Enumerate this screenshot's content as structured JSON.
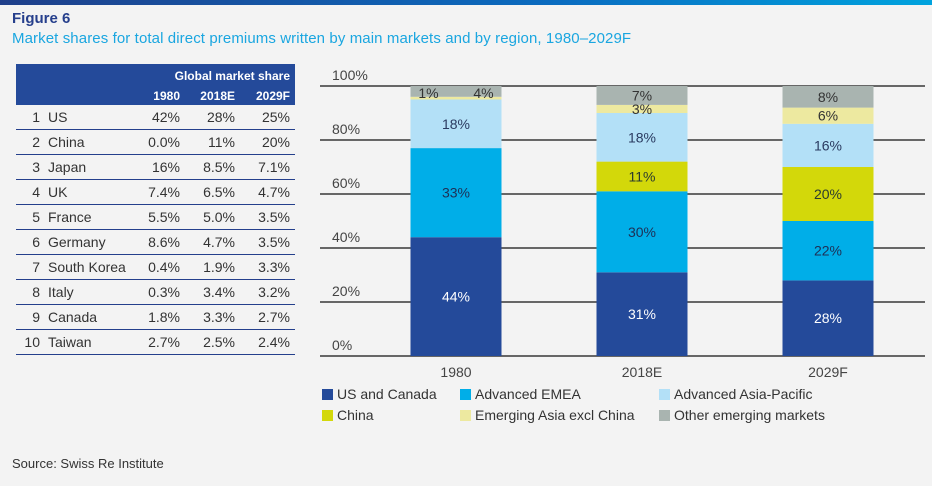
{
  "figure": {
    "label": "Figure 6",
    "title": "Market shares for total direct premiums written by main markets and by region, 1980–2029F",
    "source": "Source: Swiss Re Institute"
  },
  "table": {
    "group_header": "Global market share",
    "columns": [
      "1980",
      "2018E",
      "2029F"
    ],
    "rows": [
      {
        "rank": "1",
        "country": "US",
        "values": [
          "42%",
          "28%",
          "25%"
        ]
      },
      {
        "rank": "2",
        "country": "China",
        "values": [
          "0.0%",
          "11%",
          "20%"
        ]
      },
      {
        "rank": "3",
        "country": "Japan",
        "values": [
          "16%",
          "8.5%",
          "7.1%"
        ]
      },
      {
        "rank": "4",
        "country": "UK",
        "values": [
          "7.4%",
          "6.5%",
          "4.7%"
        ]
      },
      {
        "rank": "5",
        "country": "France",
        "values": [
          "5.5%",
          "5.0%",
          "3.5%"
        ]
      },
      {
        "rank": "6",
        "country": "Germany",
        "values": [
          "8.6%",
          "4.7%",
          "3.5%"
        ]
      },
      {
        "rank": "7",
        "country": "South Korea",
        "values": [
          "0.4%",
          "1.9%",
          "3.3%"
        ]
      },
      {
        "rank": "8",
        "country": "Italy",
        "values": [
          "0.3%",
          "3.4%",
          "3.2%"
        ]
      },
      {
        "rank": "9",
        "country": "Canada",
        "values": [
          "1.8%",
          "3.3%",
          "2.7%"
        ]
      },
      {
        "rank": "10",
        "country": "Taiwan",
        "values": [
          "2.7%",
          "2.5%",
          "2.4%"
        ]
      }
    ]
  },
  "chart_data": {
    "type": "bar",
    "stacked": true,
    "title": "Market shares for total direct premiums written by region",
    "xlabel": "",
    "ylabel": "",
    "ylim": [
      0,
      100
    ],
    "y_ticks": [
      "0%",
      "20%",
      "40%",
      "60%",
      "80%",
      "100%"
    ],
    "grid": true,
    "legend_position": "bottom",
    "categories": [
      "1980",
      "2018E",
      "2029F"
    ],
    "series": [
      {
        "name": "US and Canada",
        "color": "#244a9a",
        "label_color": "#ffffff",
        "values": [
          44,
          31,
          28
        ],
        "labels": [
          "44%",
          "31%",
          "28%"
        ]
      },
      {
        "name": "Advanced EMEA",
        "color": "#00aee8",
        "label_color": "#1e2f55",
        "values": [
          33,
          30,
          22
        ],
        "labels": [
          "33%",
          "30%",
          "22%"
        ]
      },
      {
        "name": "China",
        "color": "#d3d80a",
        "label_color": "#2a3a30",
        "values": [
          0,
          11,
          20
        ],
        "labels": [
          "",
          "11%",
          "20%"
        ]
      },
      {
        "name": "Advanced Asia-Pacific",
        "color": "#b3e0f7",
        "label_color": "#2a3a60",
        "values": [
          18,
          18,
          16
        ],
        "labels": [
          "18%",
          "18%",
          "16%"
        ]
      },
      {
        "name": "Emerging Asia excl China",
        "color": "#ede9a0",
        "label_color": "#333333",
        "values": [
          1,
          3,
          6
        ],
        "labels": [
          "1%",
          "3%",
          "6%"
        ]
      },
      {
        "name": "Other emerging markets",
        "color": "#a9b4b0",
        "label_color": "#333333",
        "values": [
          4,
          7,
          8
        ],
        "labels": [
          "4%",
          "7%",
          "8%"
        ]
      }
    ],
    "legend_order": [
      "US and Canada",
      "Advanced EMEA",
      "Advanced Asia-Pacific",
      "China",
      "Emerging Asia excl China",
      "Other emerging markets"
    ]
  }
}
